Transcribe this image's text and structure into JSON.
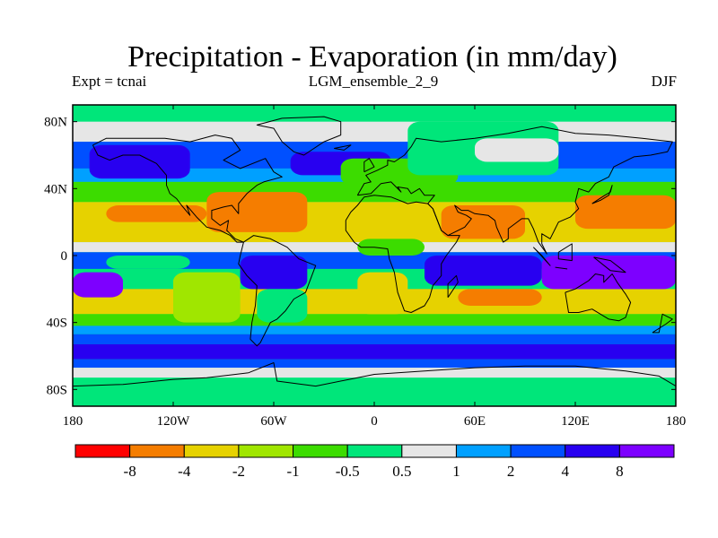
{
  "chart_data": {
    "type": "heatmap",
    "title": "Precipitation - Evaporation (in mm/day)",
    "subtitle_left": "Expt = tcnai",
    "subtitle_center": "LGM_ensemble_2_9",
    "subtitle_right": "DJF",
    "x_axis": {
      "range": [
        -180,
        180
      ],
      "ticks": [
        {
          "value": -180,
          "label": "180"
        },
        {
          "value": -120,
          "label": "120W"
        },
        {
          "value": -60,
          "label": "60W"
        },
        {
          "value": 0,
          "label": "0"
        },
        {
          "value": 60,
          "label": "60E"
        },
        {
          "value": 120,
          "label": "120E"
        },
        {
          "value": 180,
          "label": "180"
        }
      ]
    },
    "y_axis": {
      "range": [
        -90,
        90
      ],
      "ticks": [
        {
          "value": 80,
          "label": "80N"
        },
        {
          "value": 40,
          "label": "40N"
        },
        {
          "value": 0,
          "label": "0"
        },
        {
          "value": -40,
          "label": "40S"
        },
        {
          "value": -80,
          "label": "80S"
        }
      ]
    },
    "colorbar": {
      "colors": [
        "#ff0000",
        "#f57d00",
        "#e6d200",
        "#a0e600",
        "#3cdc00",
        "#00e67a",
        "#e6e6e6",
        "#00a0ff",
        "#0050ff",
        "#2800f0",
        "#7d00ff"
      ],
      "labels": [
        "-8",
        "-4",
        "-2",
        "-1",
        "-0.5",
        "0.5",
        "1",
        "2",
        "4",
        "8"
      ]
    },
    "background_class": 5,
    "bands": [
      {
        "lat": [
          80,
          90
        ],
        "class": 5
      },
      {
        "lat": [
          68,
          80
        ],
        "class": 6
      },
      {
        "lat": [
          52,
          68
        ],
        "class": 8
      },
      {
        "lat": [
          44,
          52
        ],
        "class": 7
      },
      {
        "lat": [
          32,
          44
        ],
        "class": 4
      },
      {
        "lat": [
          8,
          32
        ],
        "class": 2
      },
      {
        "lat": [
          2,
          8
        ],
        "class": 6
      },
      {
        "lat": [
          -8,
          2
        ],
        "class": 8
      },
      {
        "lat": [
          -20,
          -8
        ],
        "class": 5
      },
      {
        "lat": [
          -35,
          -20
        ],
        "class": 2
      },
      {
        "lat": [
          -42,
          -35
        ],
        "class": 4
      },
      {
        "lat": [
          -47,
          -42
        ],
        "class": 7
      },
      {
        "lat": [
          -53,
          -47
        ],
        "class": 8
      },
      {
        "lat": [
          -62,
          -53
        ],
        "class": 9
      },
      {
        "lat": [
          -67,
          -62
        ],
        "class": 8
      },
      {
        "lat": [
          -73,
          -67
        ],
        "class": 6
      },
      {
        "lat": [
          -90,
          -73
        ],
        "class": 5
      }
    ],
    "regions": [
      {
        "lon": [
          -170,
          -110
        ],
        "lat": [
          46,
          66
        ],
        "class": 9
      },
      {
        "lon": [
          -50,
          10
        ],
        "lat": [
          48,
          62
        ],
        "class": 9
      },
      {
        "lon": [
          -20,
          50
        ],
        "lat": [
          42,
          58
        ],
        "class": 4
      },
      {
        "lon": [
          20,
          110
        ],
        "lat": [
          48,
          80
        ],
        "class": 5
      },
      {
        "lon": [
          60,
          110
        ],
        "lat": [
          56,
          70
        ],
        "class": 6
      },
      {
        "lon": [
          -100,
          -40
        ],
        "lat": [
          14,
          38
        ],
        "class": 1
      },
      {
        "lon": [
          120,
          180
        ],
        "lat": [
          16,
          36
        ],
        "class": 1
      },
      {
        "lon": [
          40,
          90
        ],
        "lat": [
          10,
          30
        ],
        "class": 1
      },
      {
        "lon": [
          -20,
          30
        ],
        "lat": [
          10,
          30
        ],
        "class": 2
      },
      {
        "lon": [
          -160,
          -100
        ],
        "lat": [
          20,
          30
        ],
        "class": 1
      },
      {
        "lon": [
          -10,
          30
        ],
        "lat": [
          0,
          10
        ],
        "class": 4
      },
      {
        "lon": [
          -80,
          -40
        ],
        "lat": [
          -20,
          0
        ],
        "class": 9
      },
      {
        "lon": [
          30,
          100
        ],
        "lat": [
          -18,
          0
        ],
        "class": 9
      },
      {
        "lon": [
          100,
          180
        ],
        "lat": [
          -20,
          0
        ],
        "class": 10
      },
      {
        "lon": [
          -180,
          -150
        ],
        "lat": [
          -25,
          -10
        ],
        "class": 10
      },
      {
        "lon": [
          50,
          100
        ],
        "lat": [
          -30,
          -20
        ],
        "class": 1
      },
      {
        "lon": [
          -10,
          20
        ],
        "lat": [
          -35,
          -10
        ],
        "class": 2
      },
      {
        "lon": [
          -70,
          -40
        ],
        "lat": [
          -40,
          -20
        ],
        "class": 5
      },
      {
        "lon": [
          -160,
          -110
        ],
        "lat": [
          -8,
          0
        ],
        "class": 5
      },
      {
        "lon": [
          -120,
          -80
        ],
        "lat": [
          -40,
          -10
        ],
        "class": 3
      }
    ]
  }
}
